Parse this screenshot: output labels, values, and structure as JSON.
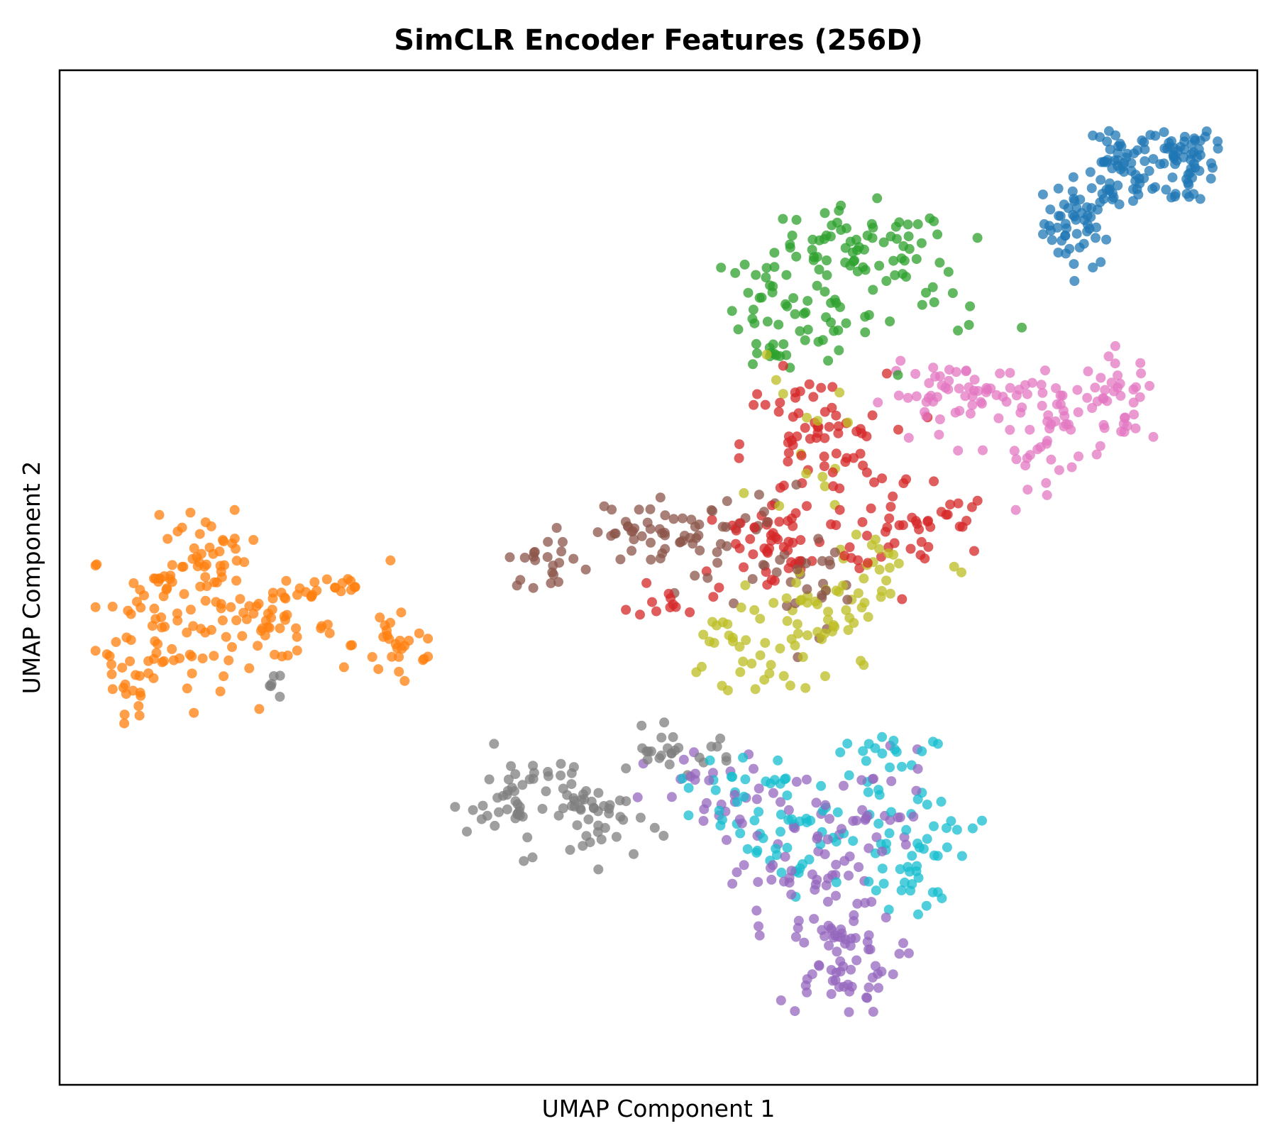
{
  "chart_data": {
    "type": "scatter",
    "title": "SimCLR Encoder Features (256D)",
    "xlabel": "UMAP Component 1",
    "ylabel": "UMAP Component 2",
    "xlim": [
      0,
      100
    ],
    "ylim": [
      0,
      100
    ],
    "ticks_visible": false,
    "grid": false,
    "legend": "none",
    "marker_alpha": 0.75,
    "series": [
      {
        "color": "#1f77b4",
        "clusters": [
          {
            "cx": 85.2,
            "cy": 85.0,
            "sx": 1.5,
            "sy": 2.2,
            "n": 55
          },
          {
            "cx": 88.5,
            "cy": 89.5,
            "sx": 1.4,
            "sy": 1.8,
            "n": 45
          },
          {
            "cx": 92.0,
            "cy": 92.5,
            "sx": 2.5,
            "sy": 1.0,
            "n": 40
          },
          {
            "cx": 94.5,
            "cy": 90.0,
            "sx": 1.5,
            "sy": 2.0,
            "n": 30
          }
        ]
      },
      {
        "color": "#ff7f0e",
        "clusters": [
          {
            "cx": 8.5,
            "cy": 46.0,
            "sx": 3.0,
            "sy": 4.5,
            "n": 80
          },
          {
            "cx": 13.0,
            "cy": 52.0,
            "sx": 1.8,
            "sy": 2.0,
            "n": 35
          },
          {
            "cx": 17.0,
            "cy": 45.0,
            "sx": 3.0,
            "sy": 1.5,
            "n": 45
          },
          {
            "cx": 22.0,
            "cy": 49.0,
            "sx": 2.2,
            "sy": 0.8,
            "n": 20
          },
          {
            "cx": 28.5,
            "cy": 43.5,
            "sx": 2.0,
            "sy": 2.5,
            "n": 28
          },
          {
            "cx": 5.5,
            "cy": 39.0,
            "sx": 1.2,
            "sy": 1.0,
            "n": 12
          }
        ]
      },
      {
        "color": "#2ca02c",
        "clusters": [
          {
            "cx": 67.0,
            "cy": 82.0,
            "sx": 4.0,
            "sy": 2.2,
            "n": 70
          },
          {
            "cx": 59.5,
            "cy": 77.0,
            "sx": 1.5,
            "sy": 3.5,
            "n": 35
          },
          {
            "cx": 64.0,
            "cy": 75.0,
            "sx": 2.5,
            "sy": 1.5,
            "n": 25
          },
          {
            "cx": 72.0,
            "cy": 78.0,
            "sx": 3.5,
            "sy": 2.0,
            "n": 15
          }
        ]
      },
      {
        "color": "#d62728",
        "clusters": [
          {
            "cx": 63.0,
            "cy": 63.0,
            "sx": 3.0,
            "sy": 3.5,
            "n": 70
          },
          {
            "cx": 60.0,
            "cy": 53.0,
            "sx": 3.5,
            "sy": 2.5,
            "n": 50
          },
          {
            "cx": 71.0,
            "cy": 55.0,
            "sx": 3.5,
            "sy": 2.5,
            "n": 45
          },
          {
            "cx": 51.0,
            "cy": 48.0,
            "sx": 1.5,
            "sy": 1.0,
            "n": 12
          }
        ]
      },
      {
        "color": "#9467bd",
        "clusters": [
          {
            "cx": 65.0,
            "cy": 12.0,
            "sx": 2.5,
            "sy": 2.5,
            "n": 60
          },
          {
            "cx": 62.0,
            "cy": 20.0,
            "sx": 3.0,
            "sy": 3.0,
            "n": 50
          },
          {
            "cx": 66.0,
            "cy": 27.0,
            "sx": 4.0,
            "sy": 3.0,
            "n": 40
          },
          {
            "cx": 55.0,
            "cy": 28.0,
            "sx": 3.0,
            "sy": 2.5,
            "n": 25
          }
        ]
      },
      {
        "color": "#8c564b",
        "clusters": [
          {
            "cx": 54.0,
            "cy": 54.0,
            "sx": 4.5,
            "sy": 2.5,
            "n": 60
          },
          {
            "cx": 40.5,
            "cy": 51.5,
            "sx": 1.5,
            "sy": 1.2,
            "n": 20
          },
          {
            "cx": 47.5,
            "cy": 54.5,
            "sx": 2.0,
            "sy": 1.0,
            "n": 18
          },
          {
            "cx": 63.0,
            "cy": 50.0,
            "sx": 3.0,
            "sy": 2.5,
            "n": 20
          }
        ]
      },
      {
        "color": "#e377c2",
        "clusters": [
          {
            "cx": 75.0,
            "cy": 68.0,
            "sx": 3.0,
            "sy": 1.5,
            "n": 50
          },
          {
            "cx": 83.5,
            "cy": 66.0,
            "sx": 3.0,
            "sy": 2.0,
            "n": 50
          },
          {
            "cx": 88.5,
            "cy": 68.0,
            "sx": 1.5,
            "sy": 2.0,
            "n": 30
          },
          {
            "cx": 81.5,
            "cy": 61.0,
            "sx": 1.5,
            "sy": 2.0,
            "n": 12
          }
        ]
      },
      {
        "color": "#7f7f7f",
        "clusters": [
          {
            "cx": 39.0,
            "cy": 28.0,
            "sx": 2.5,
            "sy": 2.5,
            "n": 55
          },
          {
            "cx": 45.0,
            "cy": 26.0,
            "sx": 2.0,
            "sy": 2.0,
            "n": 35
          },
          {
            "cx": 51.5,
            "cy": 33.0,
            "sx": 2.5,
            "sy": 1.0,
            "n": 25
          },
          {
            "cx": 17.5,
            "cy": 39.5,
            "sx": 0.8,
            "sy": 0.5,
            "n": 6
          }
        ]
      },
      {
        "color": "#bcbd22",
        "clusters": [
          {
            "cx": 63.5,
            "cy": 45.5,
            "sx": 3.5,
            "sy": 3.0,
            "n": 50
          },
          {
            "cx": 56.5,
            "cy": 41.5,
            "sx": 2.5,
            "sy": 3.0,
            "n": 25
          },
          {
            "cx": 68.5,
            "cy": 51.0,
            "sx": 3.0,
            "sy": 2.5,
            "n": 20
          },
          {
            "cx": 62.0,
            "cy": 62.0,
            "sx": 2.0,
            "sy": 4.0,
            "n": 15
          }
        ]
      },
      {
        "color": "#17becf",
        "clusters": [
          {
            "cx": 71.5,
            "cy": 23.5,
            "sx": 2.5,
            "sy": 3.0,
            "n": 50
          },
          {
            "cx": 61.0,
            "cy": 25.5,
            "sx": 3.5,
            "sy": 3.0,
            "n": 50
          },
          {
            "cx": 67.0,
            "cy": 32.0,
            "sx": 3.0,
            "sy": 1.5,
            "n": 20
          },
          {
            "cx": 55.0,
            "cy": 30.0,
            "sx": 3.0,
            "sy": 2.0,
            "n": 15
          }
        ]
      }
    ]
  }
}
